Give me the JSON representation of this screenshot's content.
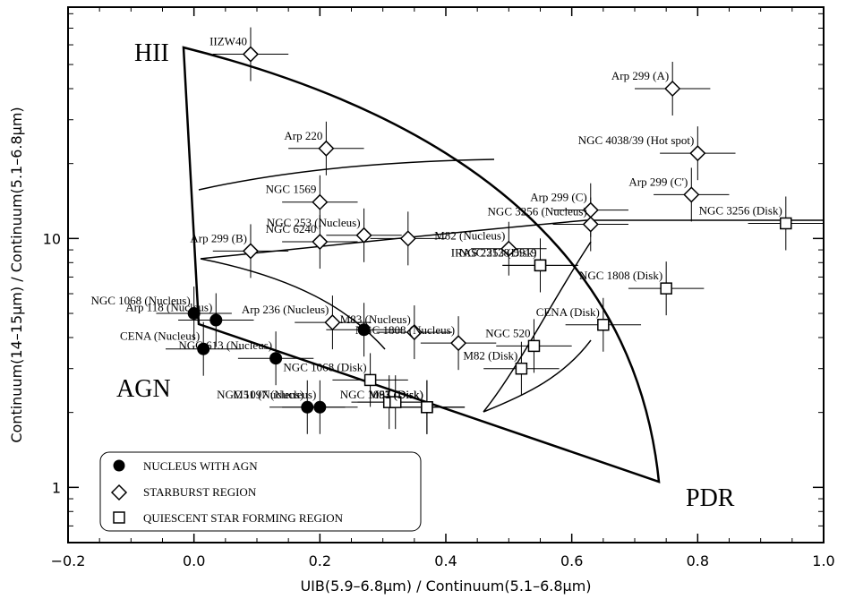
{
  "chart_data": {
    "type": "scatter",
    "xlabel": "UIB(5.9–6.8μm) / Continuum(5.1–6.8μm)",
    "ylabel": "Continuum(14–15μm) / Continuum(5.1–6.8μm)",
    "xlim": [
      -0.2,
      1.0
    ],
    "ylim": [
      0.6,
      85
    ],
    "yscale": "log",
    "x_ticks": [
      "−0.2",
      "0.0",
      "0.2",
      "0.4",
      "0.6",
      "0.8",
      "1.0"
    ],
    "y_ticks": [
      "1",
      "10"
    ],
    "region_labels": {
      "hii": "HII",
      "agn": "AGN",
      "pdr": "PDR"
    },
    "legend": {
      "placement": "bottom-left",
      "entries": [
        "NUCLEUS WITH AGN",
        "STARBURST REGION",
        "QUIESCENT STAR FORMING REGION"
      ]
    },
    "series": [
      {
        "name": "NUCLEUS WITH AGN",
        "marker": "circle",
        "points": [
          {
            "label": "NGC 1068 (Nucleus)",
            "x": 0.0,
            "y": 5.0
          },
          {
            "label": "Arp 118 (Nucleus)",
            "x": 0.035,
            "y": 4.7
          },
          {
            "label": "CENA (Nucleus)",
            "x": 0.015,
            "y": 3.6
          },
          {
            "label": "NGC 613 (Nucleus)",
            "x": 0.13,
            "y": 3.3
          },
          {
            "label": "",
            "x": 0.27,
            "y": 4.3
          },
          {
            "label": "M51 (Nucleus)",
            "x": 0.18,
            "y": 2.1
          },
          {
            "label": "NGC 1097 (Nucleus)",
            "x": 0.2,
            "y": 2.1
          }
        ]
      },
      {
        "name": "STARBURST REGION",
        "marker": "diamond",
        "points": [
          {
            "label": "IIZW40",
            "x": 0.09,
            "y": 55
          },
          {
            "label": "Arp 299 (A)",
            "x": 0.76,
            "y": 40
          },
          {
            "label": "Arp 220",
            "x": 0.21,
            "y": 23
          },
          {
            "label": "NGC 4038/39 (Hot spot)",
            "x": 0.8,
            "y": 22
          },
          {
            "label": "Arp 299 (C')",
            "x": 0.79,
            "y": 15
          },
          {
            "label": "NGC 1569",
            "x": 0.2,
            "y": 14
          },
          {
            "label": "Arp 299 (C)",
            "x": 0.63,
            "y": 13
          },
          {
            "label": "Arp 299 (B)",
            "x": 0.09,
            "y": 8.9
          },
          {
            "label": "NGC 6240",
            "x": 0.2,
            "y": 9.7
          },
          {
            "label": "NGC 253 (Nucleus)",
            "x": 0.27,
            "y": 10.3
          },
          {
            "label": "",
            "x": 0.34,
            "y": 10.0
          },
          {
            "label": "M82 (Nucleus)",
            "x": 0.5,
            "y": 9.1
          },
          {
            "label": "NGC 3256 (Nucleus)",
            "x": 0.63,
            "y": 11.4
          },
          {
            "label": "Arp 236 (Nucleus)",
            "x": 0.22,
            "y": 4.6
          },
          {
            "label": "M83 (Nucleus)",
            "x": 0.35,
            "y": 4.2
          },
          {
            "label": "NGC 1808 (Nucleus)",
            "x": 0.42,
            "y": 3.8
          }
        ]
      },
      {
        "name": "QUIESCENT STAR FORMING REGION",
        "marker": "square",
        "points": [
          {
            "label": "NGC 3256 (Disk)",
            "x": 0.94,
            "y": 11.5
          },
          {
            "label": "IRAS 23128-5919",
            "x": 0.55,
            "y": 7.8
          },
          {
            "label": "NGC 253 (Disk)",
            "x": 0.55,
            "y": 7.8
          },
          {
            "label": "NGC 1808 (Disk)",
            "x": 0.75,
            "y": 6.3
          },
          {
            "label": "CENA (Disk)",
            "x": 0.65,
            "y": 4.5
          },
          {
            "label": "NGC 520",
            "x": 0.54,
            "y": 3.7
          },
          {
            "label": "M82 (Disk)",
            "x": 0.52,
            "y": 3.0
          },
          {
            "label": "NGC 1068 (Disk)",
            "x": 0.28,
            "y": 2.7
          },
          {
            "label": "",
            "x": 0.31,
            "y": 2.2
          },
          {
            "label": "",
            "x": 0.32,
            "y": 2.2
          },
          {
            "label": "M83 (Disk)",
            "x": 0.37,
            "y": 2.1
          },
          {
            "label": "M51 (Disk)",
            "x": 0.37,
            "y": 2.1
          },
          {
            "label": "NGC 1097 (Disk)",
            "x": 0.37,
            "y": 2.1
          }
        ]
      }
    ]
  }
}
